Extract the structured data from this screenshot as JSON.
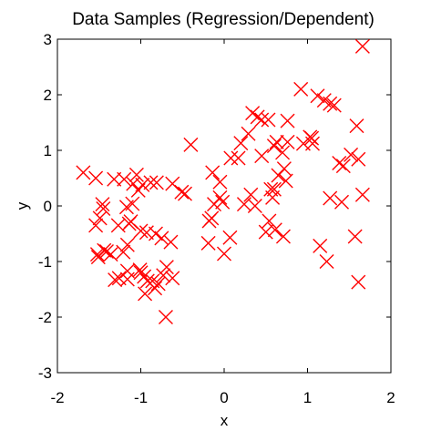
{
  "chart_data": {
    "type": "scatter",
    "title": "Data Samples (Regression/Dependent)",
    "xlabel": "x",
    "ylabel": "y",
    "xlim": [
      -2,
      2
    ],
    "ylim": [
      -3,
      3
    ],
    "xticks": [
      "-2",
      "-1",
      "0",
      "1",
      "2"
    ],
    "yticks": [
      "3",
      "2",
      "1",
      "0",
      "-1",
      "-2",
      "-3"
    ],
    "grid": false,
    "marker": "x",
    "color": "#ff0000",
    "series": [
      {
        "x": [
          -1.69,
          -1.54,
          -1.46,
          -1.32,
          -1.2,
          -1.05,
          -1.09,
          -1.03,
          -0.88,
          -0.98,
          -1.17,
          -1.14,
          -0.81,
          -0.93,
          -0.51,
          -0.47,
          -0.4,
          -0.62,
          -0.64,
          -0.82,
          -1.49,
          -1.45,
          -1.52,
          -1.44,
          -1.51,
          -1.1,
          -1.12,
          -1.16,
          -1.21,
          -1.0,
          -0.75,
          -1.36,
          -1.41,
          -1.54,
          -1.27,
          -1.31,
          -1.26,
          -1.16,
          -1.16,
          -1.01,
          -1.0,
          -0.69,
          -0.96,
          -0.95,
          -0.86,
          -0.83,
          -0.79,
          -0.73,
          -0.62,
          -0.92,
          -0.7,
          -0.14,
          -0.05,
          -0.12,
          -0.15,
          -0.05,
          0.08,
          0.17,
          0.2,
          0.29,
          0.34,
          0.4,
          0.45,
          0.53,
          0.6,
          0.63,
          0.7,
          0.76,
          0.92,
          1.03,
          1.05,
          0.95,
          0.76,
          0.72,
          0.65,
          0.58,
          0.6,
          0.56,
          0.5,
          0.54,
          0.61,
          0.71,
          1.12,
          1.2,
          1.27,
          1.32,
          1.38,
          1.43,
          1.52,
          1.59,
          1.61,
          1.66,
          1.41,
          1.27,
          1.15,
          1.23,
          1.57,
          1.61,
          1.66,
          0.07,
          0.0,
          -0.19,
          -0.18,
          -0.02,
          0.24,
          0.32,
          0.37,
          0.45,
          1.06,
          0.74
        ],
        "y": [
          0.6,
          0.5,
          0.03,
          0.48,
          0.48,
          0.56,
          0.4,
          0.28,
          0.42,
          0.38,
          -0.02,
          -0.32,
          0.42,
          -0.48,
          0.25,
          0.22,
          1.1,
          0.4,
          -0.65,
          -0.5,
          -0.22,
          -0.05,
          -0.87,
          -0.8,
          -0.92,
          0.04,
          -0.28,
          -0.7,
          -0.83,
          -0.45,
          -0.58,
          -0.87,
          -0.82,
          -0.35,
          -0.35,
          -1.33,
          -1.3,
          -1.17,
          -1.32,
          -1.15,
          -1.2,
          -1.1,
          -1.27,
          -1.58,
          -1.35,
          -1.48,
          -1.4,
          -1.25,
          -1.3,
          -1.35,
          -2.0,
          0.6,
          0.43,
          0.03,
          -0.22,
          0.15,
          0.86,
          0.86,
          1.13,
          1.3,
          1.67,
          1.6,
          1.55,
          1.55,
          1.08,
          1.15,
          0.96,
          1.15,
          2.1,
          1.24,
          1.22,
          1.12,
          1.53,
          0.67,
          0.55,
          0.15,
          0.3,
          0.3,
          -0.47,
          -0.27,
          -0.43,
          -0.55,
          1.98,
          1.9,
          1.84,
          1.81,
          0.77,
          0.72,
          0.92,
          1.44,
          0.84,
          0.2,
          0.07,
          0.14,
          -0.72,
          -1.0,
          -0.55,
          -1.37,
          2.87,
          -0.57,
          -0.86,
          -0.67,
          -0.27,
          0.07,
          0.03,
          0.2,
          0.0,
          0.9,
          1.12,
          0.45
        ]
      }
    ]
  }
}
